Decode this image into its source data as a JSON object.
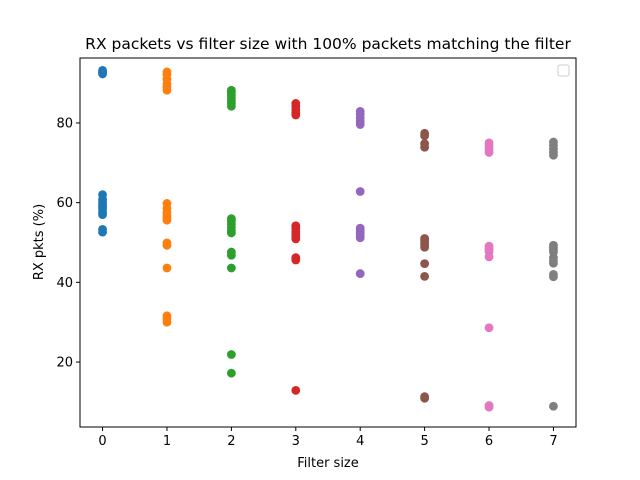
{
  "chart_data": {
    "type": "scatter",
    "title": "RX packets vs filter size with 100% packets matching the filter",
    "xlabel": "Filter size",
    "ylabel": "RX pkts (%)",
    "xlim": [
      -0.35,
      7.35
    ],
    "ylim": [
      3.7,
      96.3
    ],
    "xticks": [
      "0",
      "1",
      "2",
      "3",
      "4",
      "5",
      "6",
      "7"
    ],
    "yticks": [
      20,
      40,
      60,
      80
    ],
    "legend": {
      "placement": "top-right",
      "entries": []
    },
    "grid": false,
    "series": [
      {
        "x": 0,
        "color": "#1f77b4",
        "values": [
          93.2,
          92.9,
          92.6,
          92.3,
          62.0,
          60.8,
          60.2,
          59.6,
          59.0,
          58.4,
          57.6,
          57.0,
          53.3,
          52.6
        ]
      },
      {
        "x": 1,
        "color": "#ff7f0e",
        "values": [
          92.8,
          92.2,
          91.0,
          89.8,
          89.0,
          88.2,
          59.8,
          58.6,
          57.5,
          56.8,
          56.2,
          55.6,
          49.9,
          49.3,
          43.6,
          31.6,
          30.8,
          30.0
        ]
      },
      {
        "x": 2,
        "color": "#2ca02c",
        "values": [
          88.2,
          87.7,
          87.0,
          86.3,
          85.6,
          84.9,
          84.2,
          56.0,
          55.4,
          54.6,
          53.8,
          53.0,
          52.4,
          47.6,
          46.8,
          43.6,
          21.9,
          17.2
        ]
      },
      {
        "x": 3,
        "color": "#d62728",
        "values": [
          84.9,
          84.2,
          83.4,
          82.6,
          82.0,
          54.2,
          53.6,
          52.8,
          52.2,
          51.6,
          50.9,
          46.2,
          45.6,
          12.9
        ]
      },
      {
        "x": 4,
        "color": "#9467bd",
        "values": [
          82.9,
          82.2,
          81.3,
          80.4,
          79.6,
          62.8,
          53.6,
          53.0,
          52.4,
          51.8,
          51.2,
          42.2
        ]
      },
      {
        "x": 5,
        "color": "#8c564b",
        "values": [
          77.4,
          76.8,
          74.8,
          73.9,
          51.0,
          50.5,
          49.9,
          49.4,
          48.8,
          44.7,
          41.5,
          11.3,
          10.9
        ]
      },
      {
        "x": 6,
        "color": "#e377c2",
        "values": [
          75.0,
          74.2,
          73.4,
          72.6,
          49.1,
          48.6,
          48.2,
          47.7,
          46.4,
          28.6,
          9.1,
          8.7
        ]
      },
      {
        "x": 7,
        "color": "#7f7f7f",
        "values": [
          75.2,
          74.4,
          73.5,
          72.6,
          71.9,
          49.3,
          48.7,
          48.2,
          47.6,
          46.2,
          45.4,
          44.8,
          42.0,
          41.4,
          8.9
        ]
      }
    ]
  }
}
